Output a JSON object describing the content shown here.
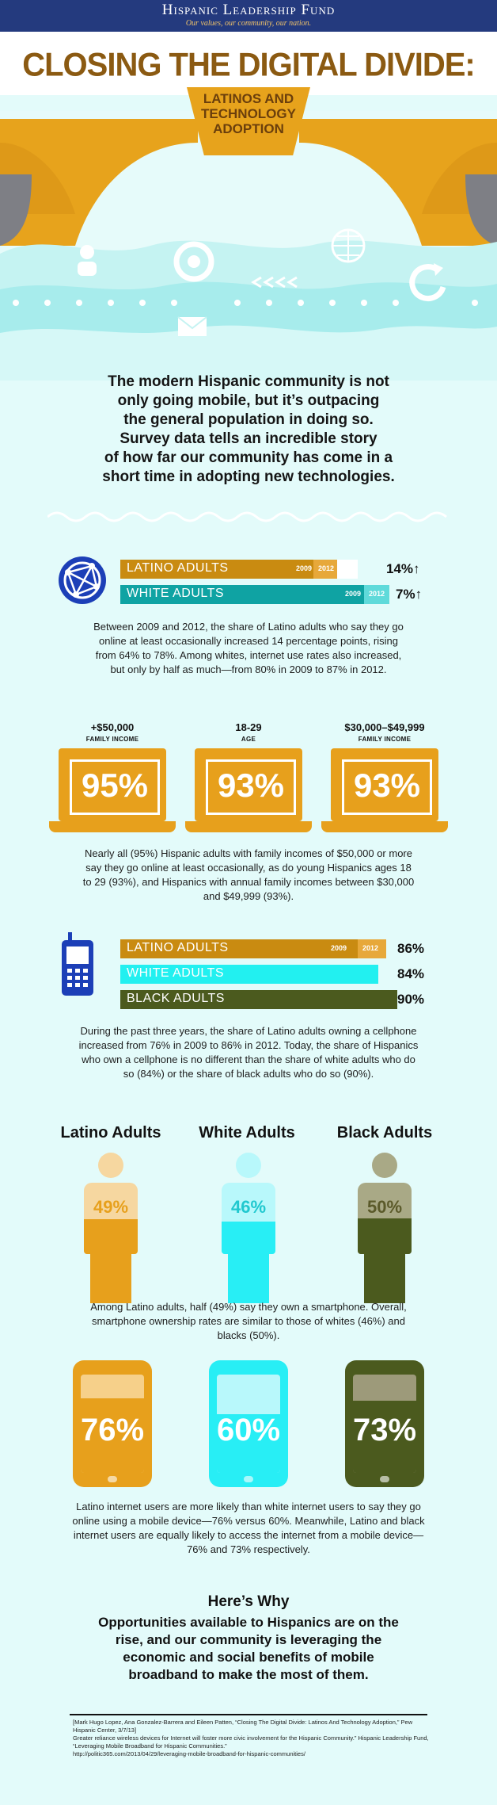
{
  "header": {
    "brand": "Hispanic Leadership Fund",
    "tagline": "Our values, our community, our nation.",
    "title": "CLOSING THE DIGITAL DIVIDE:",
    "subtitle_lines": [
      "LATINOS AND",
      "TECHNOLOGY",
      "ADOPTION"
    ]
  },
  "intro": {
    "lines": [
      "The modern Hispanic community is not",
      "only going mobile, but it’s outpacing",
      "the general population in doing so.",
      "Survey data tells an incredible story",
      "of how far our community has come in a",
      "short time in adopting new technologies."
    ]
  },
  "internet_use": {
    "icon": "globe-network-icon",
    "bars": [
      {
        "label": "LATINO ADULTS",
        "y2009": "2009",
        "y2012": "2012",
        "change": "14%",
        "color": "#c98b11"
      },
      {
        "label": "WHITE ADULTS",
        "y2009": "2009",
        "y2012": "2012",
        "change": "7%",
        "color": "#0fa3a3"
      }
    ],
    "arrow": "↑",
    "text": "Between 2009 and 2012, the share of Latino adults who say they go online at least occasionally increased 14 percentage points, rising from 64% to 78%. Among whites, internet use rates also increased, but only by half as much—from 80% in 2009 to 87% in 2012."
  },
  "laptops": [
    {
      "title": "+$50,000",
      "sub": "FAMILY INCOME",
      "value": "95%"
    },
    {
      "title": "18-29",
      "sub": "AGE",
      "value": "93%"
    },
    {
      "title": "$30,000–$49,999",
      "sub": "FAMILY INCOME",
      "value": "93%"
    }
  ],
  "laptops_text": "Nearly all (95%) Hispanic adults with family incomes of $50,000 or more say they go online at least occasionally, as do young Hispanics ages 18 to 29 (93%), and Hispanics with annual family incomes between $30,000 and $49,999 (93%).",
  "cellphone": {
    "icon": "cellphone-icon",
    "bars": [
      {
        "label": "LATINO ADULTS",
        "y2009": "2009",
        "y2012": "2012",
        "value": "86%",
        "color": "#c98b11"
      },
      {
        "label": "WHITE ADULTS",
        "value": "84%",
        "color": "#22f0f0"
      },
      {
        "label": "BLACK ADULTS",
        "value": "90%",
        "color": "#4b5a1e"
      }
    ],
    "text": "During the past three years, the share of Latino adults owning a cellphone increased from 76% in 2009 to 86% in 2012. Today, the share of Hispanics who own a cellphone is no different than the share of white adults who do so (84%) or the share of black adults who do so (90%)."
  },
  "smartphone": {
    "columns": [
      {
        "title": "Latino Adults",
        "value": "49%",
        "fraction": 0.49,
        "light": "#f6d7a0",
        "dark": "#e7a01c",
        "text": "#e7a01c"
      },
      {
        "title": "White Adults",
        "value": "46%",
        "fraction": 0.46,
        "light": "#b8f8fb",
        "dark": "#28eef5",
        "text": "#20c8cf"
      },
      {
        "title": "Black Adults",
        "value": "50%",
        "fraction": 0.5,
        "light": "#a9a986",
        "dark": "#4b5a1e",
        "text": "#5b5a2a"
      }
    ],
    "text": "Among Latino adults, half (49%) say they own a smartphone. Overall, smartphone ownership rates are similar to those of whites (46%) and blacks (50%)."
  },
  "mobile_device": {
    "phones": [
      {
        "value": "76%",
        "fraction": 0.76,
        "light": "#f6d08a",
        "dark": "#e7a01c"
      },
      {
        "value": "60%",
        "fraction": 0.6,
        "light": "#b8f8fb",
        "dark": "#28eef5"
      },
      {
        "value": "73%",
        "fraction": 0.73,
        "light": "#9d9a7a",
        "dark": "#4b5a1e"
      }
    ],
    "text": "Latino internet users are more likely than white internet users to say they go online using a mobile device—76% versus 60%. Meanwhile, Latino and black internet users are equally likely to access the internet from a mobile device—76% and 73% respectively."
  },
  "why": {
    "title": "Here’s Why",
    "text": "Opportunities available to Hispanics are on the rise, and our community is leveraging the economic and social benefits of mobile broadband to make the most of them."
  },
  "references": [
    "[Mark Hugo Lopez, Ana Gonzalez-Barrera and Eileen Patten, “Closing The Digital Divide: Latinos And Technology Adoption,” Pew Hispanic Center, 3/7/13]",
    "Greater reliance wireless devices for Internet will foster more civic involvement for the Hispanic Community.” Hispanic Leadership Fund, “Leveraging Mobile Broadband for Hispanic Communities.”",
    "http://politic365.com/2013/04/29/leveraging-mobile-broadband-for-hispanic-communities/"
  ]
}
